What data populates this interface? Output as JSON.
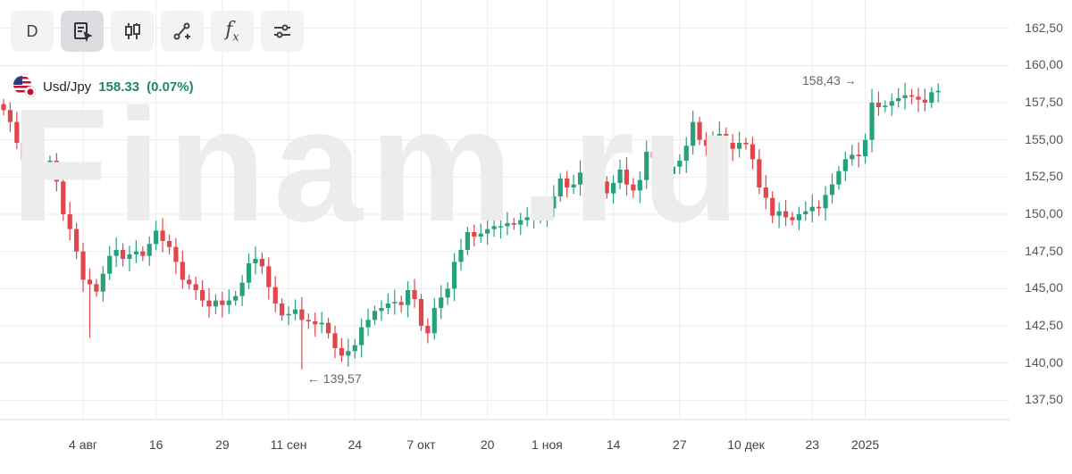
{
  "toolbar": {
    "buttons": [
      {
        "name": "period-button",
        "label": "D"
      },
      {
        "name": "chart-type-button",
        "icon": "note-cursor-icon",
        "active": true
      },
      {
        "name": "candles-button",
        "icon": "candlestick-icon"
      },
      {
        "name": "drawing-button",
        "icon": "line-pencil-icon"
      },
      {
        "name": "indicators-button",
        "icon": "fx-icon",
        "label": "f",
        "sub": "x"
      },
      {
        "name": "settings-button",
        "icon": "sliders-icon"
      }
    ]
  },
  "legend": {
    "symbol": "Usd/Jpy",
    "price": "158.33",
    "change": "(0.07%)",
    "change_color": "#1f8a5a"
  },
  "watermark": "Finam.ru",
  "colors": {
    "up": "#26a17b",
    "down": "#e0464b",
    "grid": "#ececec"
  },
  "chart_data": {
    "type": "candlestick",
    "title": "",
    "xlabel": "",
    "ylabel": "",
    "ylim": [
      136.8,
      163.2
    ],
    "y_ticks": [
      "162,50",
      "160,00",
      "157,50",
      "155,00",
      "152,50",
      "150,00",
      "147,50",
      "145,00",
      "142,50",
      "140,00",
      "137,50"
    ],
    "y_tick_values": [
      162.5,
      160,
      157.5,
      155,
      152.5,
      150,
      147.5,
      145,
      142.5,
      140,
      137.5
    ],
    "x_ticks": [
      "4 авг",
      "16",
      "29",
      "11 сен",
      "24",
      "7 окт",
      "20",
      "1 ноя",
      "14",
      "27",
      "10 дек",
      "23",
      "2025"
    ],
    "x_tick_index": [
      12,
      23,
      33,
      43,
      53,
      63,
      73,
      82,
      92,
      102,
      112,
      122,
      130
    ],
    "annotations": [
      {
        "text": "← 139,57",
        "value": 139.57,
        "index": 45
      },
      {
        "text": "158,43 →",
        "value": 158.43,
        "index": 131
      }
    ],
    "close": [
      157.0,
      156.2,
      154.8,
      153.6,
      153.1,
      153.4,
      153.5,
      153.6,
      152.2,
      150.0,
      149.0,
      147.5,
      145.6,
      145.3,
      144.8,
      146.0,
      147.2,
      147.6,
      147.0,
      147.3,
      147.5,
      147.2,
      148.0,
      148.9,
      148.2,
      147.8,
      146.8,
      145.6,
      145.3,
      144.9,
      144.2,
      143.8,
      144.2,
      143.9,
      144.2,
      144.5,
      145.4,
      146.7,
      147.0,
      146.5,
      145.1,
      144.0,
      143.2,
      143.3,
      143.6,
      142.9,
      142.8,
      142.6,
      142.7,
      142.0,
      141.0,
      140.5,
      140.8,
      141.2,
      142.4,
      142.9,
      143.5,
      143.7,
      144.0,
      144.1,
      143.9,
      144.9,
      144.3,
      142.5,
      142.0,
      143.7,
      144.4,
      145.0,
      146.8,
      147.6,
      148.8,
      148.5,
      148.7,
      149.0,
      149.2,
      149.2,
      149.4,
      149.3,
      149.6,
      149.8,
      149.9,
      150.0,
      150.4,
      151.2,
      152.4,
      151.8,
      152.0,
      152.8,
      153.0,
      152.8,
      152.2,
      151.4,
      152.1,
      153.0,
      152.0,
      151.6,
      152.3,
      154.2,
      153.8,
      152.4,
      152.7,
      153.2,
      153.6,
      154.6,
      156.2,
      155.0,
      154.6,
      154.9,
      155.4,
      154.8,
      154.4,
      154.8,
      154.7,
      153.7,
      151.8,
      151.1,
      149.9,
      150.2,
      149.8,
      149.6,
      150.0,
      150.2,
      150.5,
      150.4,
      151.3,
      152.0,
      152.9,
      153.7,
      154.0,
      153.9,
      155.0,
      157.5,
      157.2,
      157.3,
      157.6,
      157.8,
      158.0,
      157.9,
      157.7,
      157.5,
      158.2,
      158.3
    ],
    "open": [
      157.4,
      157.0,
      156.2,
      154.8,
      153.6,
      153.1,
      153.4,
      153.5,
      153.6,
      152.2,
      150.0,
      149.0,
      147.5,
      145.6,
      145.3,
      144.8,
      146.0,
      147.2,
      147.6,
      147.0,
      147.3,
      147.5,
      147.2,
      148.0,
      148.9,
      148.2,
      147.8,
      146.8,
      145.6,
      145.3,
      144.9,
      144.2,
      143.8,
      144.2,
      143.9,
      144.2,
      144.5,
      145.4,
      146.7,
      147.0,
      146.5,
      145.1,
      144.0,
      143.2,
      143.3,
      143.6,
      142.9,
      142.8,
      142.6,
      142.7,
      142.0,
      141.0,
      140.5,
      140.8,
      141.2,
      142.4,
      142.9,
      143.5,
      143.7,
      144.0,
      144.1,
      143.9,
      144.9,
      144.3,
      142.5,
      142.0,
      143.7,
      144.4,
      145.0,
      146.8,
      147.6,
      148.8,
      148.5,
      148.7,
      149.0,
      149.2,
      149.2,
      149.4,
      149.3,
      149.6,
      149.8,
      149.9,
      150.0,
      150.4,
      151.2,
      152.4,
      151.8,
      152.0,
      152.8,
      153.0,
      152.8,
      152.2,
      151.4,
      152.1,
      153.0,
      152.0,
      151.6,
      152.3,
      154.2,
      153.8,
      152.4,
      152.7,
      153.2,
      153.6,
      154.6,
      156.2,
      155.0,
      154.6,
      154.9,
      155.4,
      154.8,
      154.4,
      154.8,
      154.7,
      153.7,
      151.8,
      151.1,
      149.9,
      150.2,
      149.8,
      149.6,
      150.0,
      150.2,
      150.5,
      150.4,
      151.3,
      152.0,
      152.9,
      153.7,
      154.0,
      153.9,
      155.0,
      157.5,
      157.2,
      157.3,
      157.6,
      157.8,
      158.0,
      157.9,
      157.7,
      157.5,
      158.2
    ]
  }
}
